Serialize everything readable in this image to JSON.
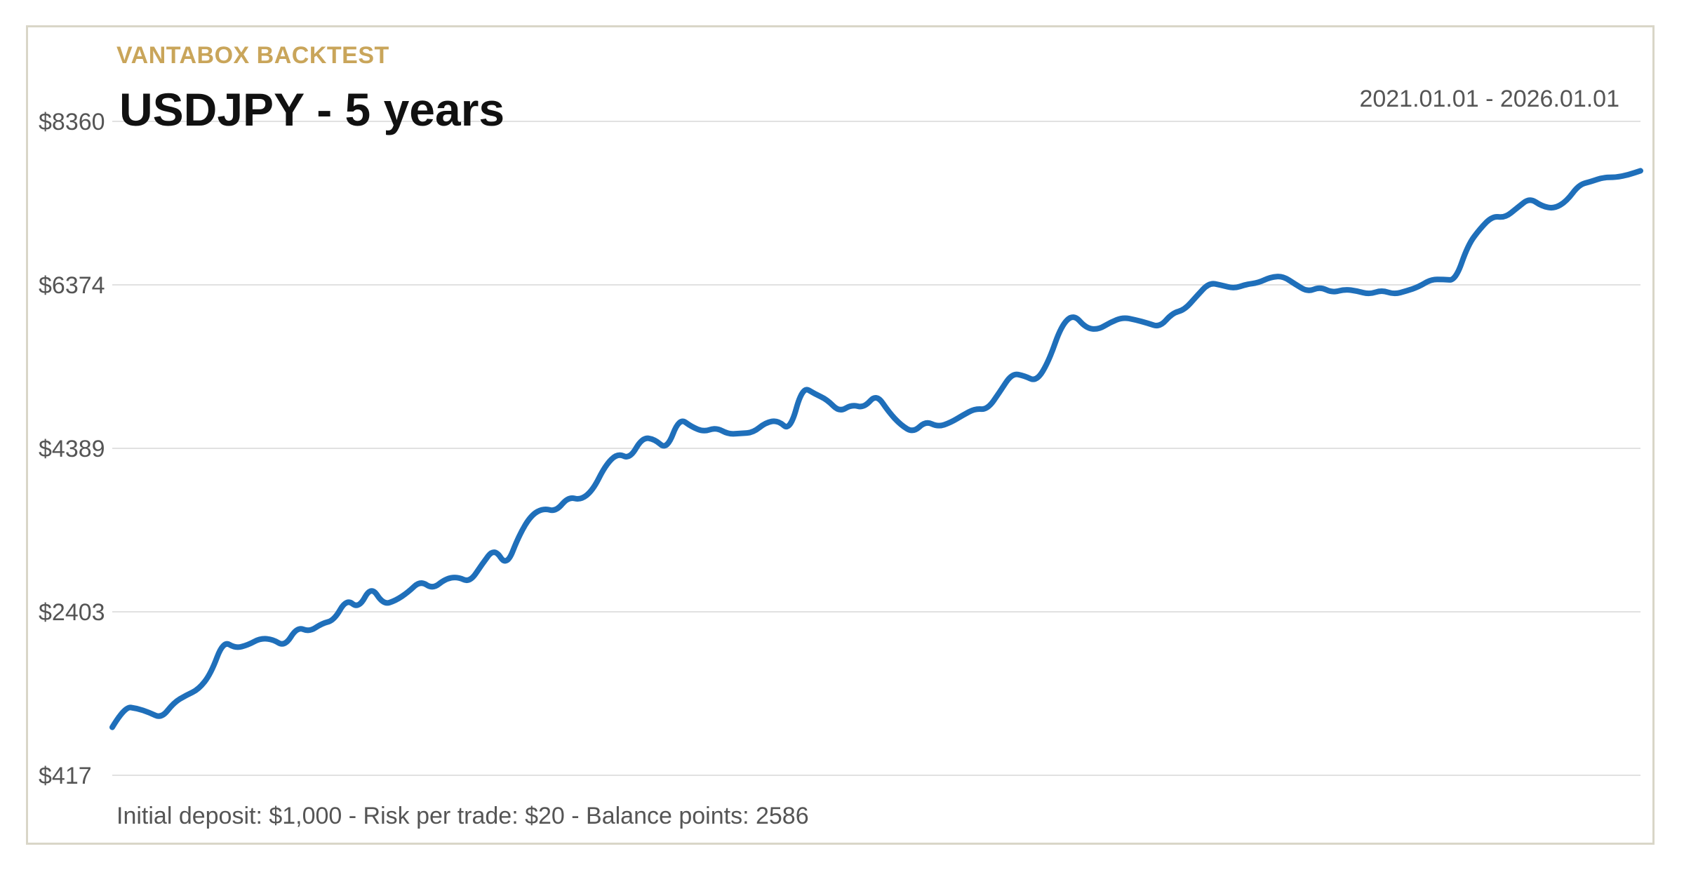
{
  "header": {
    "brand": "VANTABOX BACKTEST",
    "title": "USDJPY - 5 years",
    "date_range": "2021.01.01 - 2026.01.01"
  },
  "footer": {
    "summary": "Initial deposit: $1,000 - Risk per trade: $20 - Balance points: 2586"
  },
  "colors": {
    "line": "#1f6fba",
    "grid": "#e1e1e1",
    "brand": "#c9a55a",
    "frame": "#d9d6c8"
  },
  "chart_data": {
    "type": "line",
    "title": "USDJPY - 5 years",
    "xlabel": "",
    "ylabel": "",
    "x_range": [
      "2021.01.01",
      "2026.01.01"
    ],
    "ylim": [
      417,
      8360
    ],
    "yticks": [
      417,
      2403,
      4389,
      6374,
      8360
    ],
    "ytick_labels": [
      "$417",
      "$2403",
      "$4389",
      "$6374",
      "$8360"
    ],
    "grid": true,
    "legend": "none",
    "series": [
      {
        "values": [
          1000,
          1250,
          1230,
          1180,
          1110,
          1300,
          1390,
          1460,
          1650,
          2050,
          1960,
          2000,
          2080,
          2070,
          1980,
          2220,
          2160,
          2260,
          2300,
          2560,
          2440,
          2720,
          2490,
          2540,
          2640,
          2780,
          2680,
          2800,
          2830,
          2760,
          2980,
          3180,
          2950,
          3330,
          3580,
          3660,
          3620,
          3800,
          3760,
          3880,
          4180,
          4330,
          4260,
          4520,
          4500,
          4370,
          4760,
          4650,
          4590,
          4640,
          4560,
          4570,
          4580,
          4700,
          4730,
          4600,
          5140,
          5050,
          4980,
          4830,
          4920,
          4880,
          5050,
          4830,
          4670,
          4580,
          4720,
          4650,
          4700,
          4790,
          4870,
          4860,
          5070,
          5300,
          5270,
          5200,
          5450,
          5880,
          6020,
          5850,
          5830,
          5920,
          5980,
          5950,
          5910,
          5860,
          6030,
          6070,
          6240,
          6400,
          6370,
          6330,
          6380,
          6400,
          6470,
          6480,
          6380,
          6290,
          6350,
          6280,
          6320,
          6300,
          6260,
          6310,
          6260,
          6300,
          6350,
          6440,
          6440,
          6430,
          6860,
          7060,
          7210,
          7190,
          7310,
          7430,
          7330,
          7300,
          7390,
          7590,
          7630,
          7680,
          7680,
          7710,
          7760
        ]
      }
    ]
  }
}
